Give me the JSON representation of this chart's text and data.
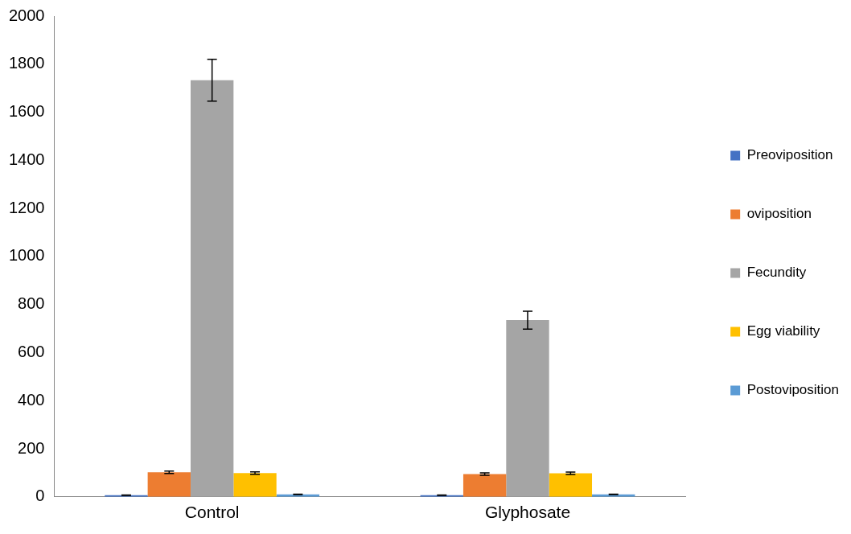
{
  "chart_data": {
    "type": "bar",
    "categories": [
      "Control",
      "Glyphosate"
    ],
    "series": [
      {
        "name": "Preoviposition",
        "color": "#4472c4",
        "values": [
          7,
          7
        ],
        "errors": [
          1,
          1
        ]
      },
      {
        "name": "oviposition",
        "color": "#ed7d31",
        "values": [
          102,
          95
        ],
        "errors": [
          5,
          5
        ]
      },
      {
        "name": "Fecundity",
        "color": "#a5a5a5",
        "values": [
          1733,
          735
        ],
        "errors": [
          87,
          37
        ]
      },
      {
        "name": "Egg viability",
        "color": "#ffc000",
        "values": [
          99,
          98
        ],
        "errors": [
          5,
          5
        ]
      },
      {
        "name": "Postoviposition",
        "color": "#5b9bd5",
        "values": [
          10,
          10
        ],
        "errors": [
          1,
          1
        ]
      }
    ],
    "ylim": [
      0,
      2000
    ],
    "yticks": [
      0,
      200,
      400,
      600,
      800,
      1000,
      1200,
      1400,
      1600,
      1800,
      2000
    ],
    "grid": false,
    "legend": "right"
  }
}
